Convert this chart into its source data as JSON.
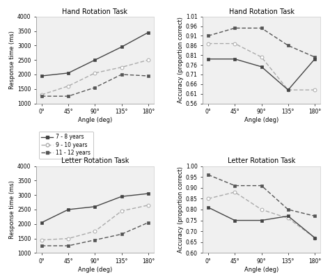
{
  "angles": [
    0,
    45,
    90,
    135,
    180
  ],
  "angle_labels": [
    "0°",
    "45°",
    "90°",
    "135°",
    "180°"
  ],
  "hand_rt": {
    "age7_8": [
      1950,
      2050,
      2500,
      2950,
      3450
    ],
    "age9_10": [
      1300,
      1600,
      2050,
      2250,
      2500
    ],
    "age11_12": [
      1250,
      1250,
      1550,
      2000,
      1950
    ]
  },
  "hand_acc": {
    "age7_8": [
      0.79,
      0.79,
      0.75,
      0.63,
      0.79
    ],
    "age9_10": [
      0.87,
      0.87,
      0.8,
      0.63,
      0.63
    ],
    "age11_12": [
      0.91,
      0.95,
      0.95,
      0.86,
      0.8
    ]
  },
  "letter_rt": {
    "age7_8": [
      2050,
      2500,
      2600,
      2950,
      3050
    ],
    "age9_10": [
      1450,
      1500,
      1750,
      2450,
      2650
    ],
    "age11_12": [
      1250,
      1250,
      1450,
      1650,
      2050
    ]
  },
  "letter_acc": {
    "age7_8": [
      0.81,
      0.75,
      0.75,
      0.77,
      0.67
    ],
    "age9_10": [
      0.85,
      0.88,
      0.8,
      0.76,
      0.67
    ],
    "age11_12": [
      0.96,
      0.91,
      0.91,
      0.8,
      0.77
    ]
  },
  "colors": {
    "age7_8": "#444444",
    "age9_10": "#aaaaaa",
    "age11_12": "#555555"
  },
  "titles": {
    "top_left": "Hand Rotation Task",
    "top_right": "Hand Rotation Task",
    "bottom_left": "Letter Rotation Task",
    "bottom_right": "Letter Rotation Task"
  },
  "ylabels": {
    "rt": "Response time (ms)",
    "acc": "Accuracy (proportion correct)"
  },
  "xlabel": "Angle (deg)",
  "ylim_rt": [
    1000,
    4000
  ],
  "ylim_acc_hand": [
    0.56,
    1.0
  ],
  "ylim_acc_letter": [
    0.6,
    1.0
  ],
  "legend_labels": [
    "7 - 8 years",
    "9 - 10 years",
    "11 - 12 years"
  ],
  "fontsize_title": 7,
  "fontsize_axis": 6,
  "fontsize_tick": 5.5,
  "fontsize_legend": 5.5
}
